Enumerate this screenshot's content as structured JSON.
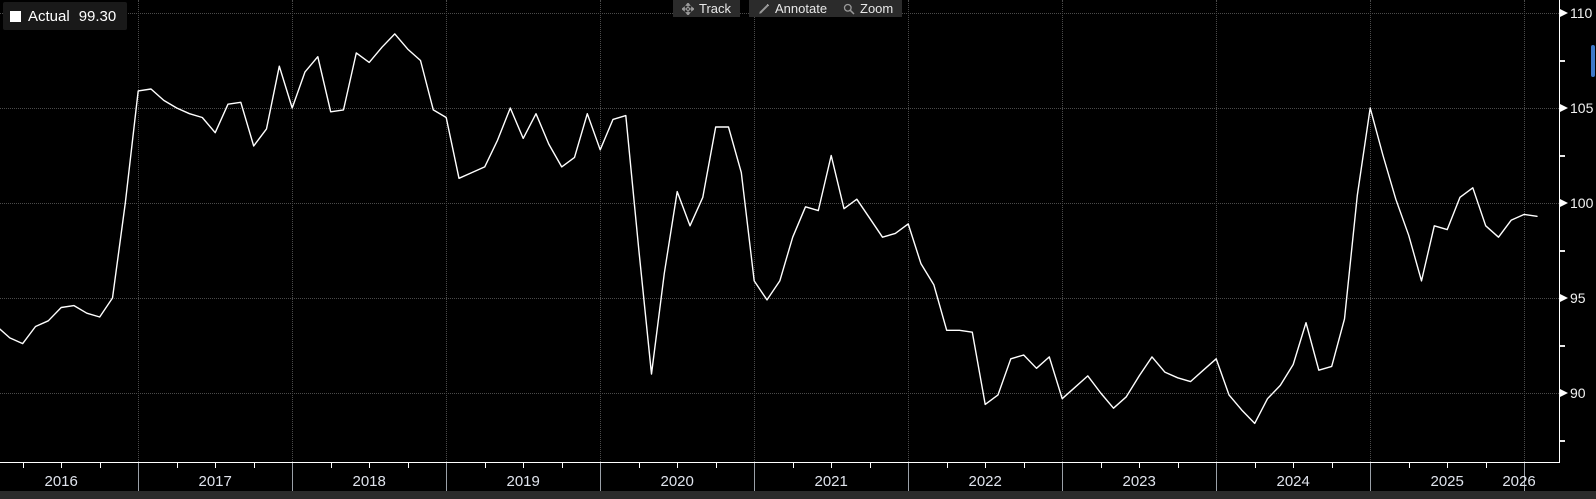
{
  "legend": {
    "label": "Actual",
    "value": "99.30"
  },
  "toolbar": {
    "buttons": [
      {
        "label": "Track",
        "icon": "track-crosshair-icon"
      },
      {
        "label": "Annotate",
        "icon": "annotate-pencil-icon"
      },
      {
        "label": "Zoom",
        "icon": "zoom-magnifier-icon"
      }
    ]
  },
  "colors": {
    "background": "#000000",
    "line": "#ffffff",
    "grid": "#4a4a4a",
    "axis": "#ffffff",
    "button_bg": "#2b2b2b",
    "button_text": "#e8e8e8",
    "icon": "#9a9a9a",
    "legend_bg": "#191919",
    "scrollbar_track": "#2b2b2b",
    "scrollbar_thumb_blue": "#3d78c9",
    "year_separator": "#9aa0a8"
  },
  "chart_data": {
    "type": "line",
    "title": "",
    "grid": true,
    "legend_position": "top-left",
    "last_value_label": "99.30",
    "series": [
      {
        "name": "Actual",
        "color": "#ffffff",
        "start_month": "2016-02",
        "frequency": "monthly",
        "values": [
          93.5,
          92.9,
          92.6,
          93.5,
          93.8,
          94.5,
          94.6,
          94.2,
          94.0,
          95.0,
          100.0,
          105.9,
          106.0,
          105.4,
          105.0,
          104.7,
          104.5,
          103.7,
          105.2,
          105.3,
          103.0,
          103.9,
          107.2,
          105.0,
          106.9,
          107.7,
          104.8,
          104.9,
          107.9,
          107.4,
          108.2,
          108.9,
          108.1,
          107.5,
          104.9,
          104.5,
          101.3,
          101.6,
          101.9,
          103.3,
          105.0,
          103.4,
          104.7,
          103.1,
          101.9,
          102.4,
          104.7,
          102.8,
          104.4,
          104.6,
          97.6,
          91.0,
          96.3,
          100.6,
          98.8,
          100.3,
          104.0,
          104.0,
          101.6,
          95.9,
          94.9,
          95.9,
          98.2,
          99.8,
          99.6,
          102.5,
          99.7,
          100.2,
          99.2,
          98.2,
          98.4,
          98.9,
          96.8,
          95.7,
          93.3,
          93.3,
          93.2,
          89.4,
          89.9,
          91.8,
          92.0,
          91.3,
          91.9,
          89.7,
          90.3,
          90.9,
          90.0,
          89.2,
          89.8,
          90.9,
          91.9,
          91.1,
          90.8,
          90.6,
          91.2,
          91.8,
          89.9,
          89.1,
          88.4,
          89.7,
          90.4,
          91.5,
          93.7,
          91.2,
          91.4,
          93.9,
          100.4,
          105.0,
          102.5,
          100.2,
          98.3,
          95.9,
          98.8,
          98.6,
          100.3,
          100.8,
          98.8,
          98.2,
          99.1,
          99.4,
          99.3
        ]
      }
    ],
    "x_axis": {
      "tick_labels": [
        "2016",
        "2017",
        "2018",
        "2019",
        "2020",
        "2021",
        "2022",
        "2023",
        "2024",
        "2025",
        "2026"
      ],
      "minor_ticks": "quarterly"
    },
    "y_axis": {
      "side": "right",
      "tick_labels": [
        "110",
        "105",
        "100",
        "95",
        "90"
      ],
      "ticks": [
        110,
        105,
        100,
        95,
        90
      ],
      "minor_tick_interval": 2.5,
      "approx_visible_range": [
        86.5,
        110.7
      ]
    }
  }
}
